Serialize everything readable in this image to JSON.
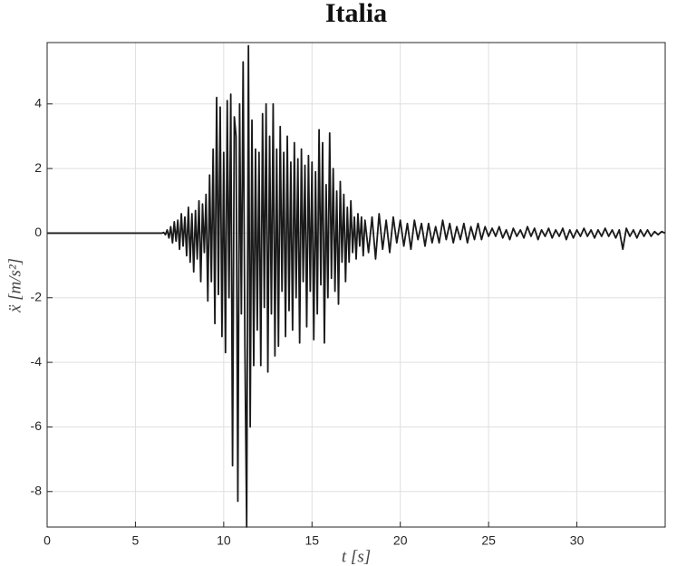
{
  "chart_data": {
    "type": "line",
    "title": "Italia",
    "x_label": "t [s]",
    "y_label": "ẍ [m/s²]",
    "xlim": [
      0,
      35
    ],
    "ylim": [
      -9.1,
      5.9
    ],
    "xticks": [
      0,
      5,
      10,
      15,
      20,
      25,
      30
    ],
    "yticks": [
      -8,
      -6,
      -4,
      -2,
      0,
      2,
      4
    ],
    "grid": true,
    "x": [
      0,
      6.5,
      6.6,
      6.7,
      6.8,
      6.9,
      7.0,
      7.1,
      7.2,
      7.3,
      7.4,
      7.5,
      7.6,
      7.7,
      7.8,
      7.9,
      8.0,
      8.1,
      8.2,
      8.3,
      8.4,
      8.5,
      8.6,
      8.7,
      8.8,
      8.9,
      9.0,
      9.1,
      9.2,
      9.3,
      9.4,
      9.5,
      9.6,
      9.7,
      9.8,
      9.9,
      10.0,
      10.1,
      10.2,
      10.3,
      10.4,
      10.5,
      10.6,
      10.7,
      10.8,
      10.9,
      11.0,
      11.1,
      11.2,
      11.3,
      11.4,
      11.5,
      11.6,
      11.7,
      11.8,
      11.9,
      12.0,
      12.1,
      12.2,
      12.3,
      12.4,
      12.5,
      12.6,
      12.7,
      12.8,
      12.9,
      13.0,
      13.1,
      13.2,
      13.3,
      13.4,
      13.5,
      13.6,
      13.7,
      13.8,
      13.9,
      14.0,
      14.1,
      14.2,
      14.3,
      14.4,
      14.5,
      14.6,
      14.7,
      14.8,
      14.9,
      15.0,
      15.1,
      15.2,
      15.3,
      15.4,
      15.5,
      15.6,
      15.7,
      15.8,
      15.9,
      16.0,
      16.1,
      16.2,
      16.3,
      16.4,
      16.5,
      16.6,
      16.7,
      16.8,
      16.9,
      17.0,
      17.1,
      17.2,
      17.3,
      17.4,
      17.5,
      17.6,
      17.7,
      17.8,
      17.9,
      18.0,
      18.2,
      18.4,
      18.6,
      18.8,
      19.0,
      19.2,
      19.4,
      19.6,
      19.8,
      20.0,
      20.2,
      20.4,
      20.6,
      20.8,
      21.0,
      21.2,
      21.4,
      21.6,
      21.8,
      22.0,
      22.2,
      22.4,
      22.6,
      22.8,
      23.0,
      23.2,
      23.4,
      23.6,
      23.8,
      24.0,
      24.2,
      24.4,
      24.6,
      24.8,
      25.0,
      25.2,
      25.4,
      25.6,
      25.8,
      26.0,
      26.2,
      26.4,
      26.6,
      26.8,
      27.0,
      27.2,
      27.4,
      27.6,
      27.8,
      28.0,
      28.2,
      28.4,
      28.6,
      28.8,
      29.0,
      29.2,
      29.4,
      29.6,
      29.8,
      30.0,
      30.2,
      30.4,
      30.6,
      30.8,
      31.0,
      31.2,
      31.4,
      31.6,
      31.8,
      32.0,
      32.2,
      32.4,
      32.6,
      32.8,
      33.0,
      33.2,
      33.4,
      33.6,
      33.8,
      34.0,
      34.2,
      34.4,
      34.6,
      34.8,
      35.0
    ],
    "series": [
      {
        "color": "#1a1a1a",
        "values": [
          0,
          0,
          0.02,
          -0.05,
          0.1,
          -0.15,
          0.2,
          -0.3,
          0.35,
          -0.25,
          0.4,
          -0.5,
          0.6,
          -0.4,
          0.5,
          -0.7,
          0.8,
          -0.9,
          0.6,
          -1.2,
          0.7,
          -0.8,
          1.0,
          -1.5,
          0.9,
          -0.6,
          1.2,
          -2.1,
          1.8,
          -1.5,
          2.6,
          -2.8,
          4.2,
          -1.9,
          3.9,
          -3.2,
          2.5,
          -3.7,
          4.1,
          -2.0,
          4.3,
          -7.2,
          3.6,
          3.0,
          -8.3,
          4.0,
          -2.5,
          5.3,
          -3.5,
          -9.1,
          5.8,
          -6.0,
          3.5,
          -4.1,
          2.6,
          -3.0,
          2.5,
          -4.1,
          3.7,
          -2.3,
          4.0,
          -4.3,
          3.0,
          -2.5,
          4.0,
          -3.8,
          2.6,
          -3.5,
          3.3,
          -1.8,
          2.5,
          -3.2,
          3.0,
          -2.4,
          2.2,
          -3.0,
          2.8,
          -2.0,
          2.3,
          -3.4,
          2.6,
          -1.5,
          2.1,
          -2.9,
          2.4,
          -1.8,
          2.2,
          -3.3,
          1.9,
          -2.5,
          3.2,
          -1.6,
          2.8,
          -3.4,
          1.5,
          -2.0,
          3.1,
          -1.4,
          2.0,
          -1.8,
          1.3,
          -2.2,
          1.6,
          -0.9,
          1.2,
          -1.5,
          0.8,
          -0.9,
          1.0,
          -0.6,
          0.5,
          -0.8,
          0.6,
          -0.4,
          0.5,
          -0.7,
          0.4,
          -0.6,
          0.5,
          -0.8,
          0.6,
          -0.5,
          0.4,
          -0.6,
          0.5,
          -0.3,
          0.4,
          -0.4,
          0.3,
          -0.5,
          0.4,
          -0.2,
          0.3,
          -0.4,
          0.3,
          -0.3,
          0.2,
          -0.3,
          0.4,
          -0.2,
          0.3,
          -0.3,
          0.2,
          -0.2,
          0.3,
          -0.3,
          0.2,
          -0.2,
          0.3,
          -0.2,
          0.2,
          -0.1,
          0.15,
          -0.1,
          0.2,
          -0.15,
          0.1,
          -0.2,
          0.15,
          -0.1,
          0.1,
          -0.15,
          0.2,
          -0.1,
          0.15,
          -0.2,
          0.1,
          -0.1,
          0.15,
          -0.15,
          0.1,
          -0.1,
          0.15,
          -0.2,
          0.1,
          -0.15,
          0.1,
          -0.1,
          0.15,
          -0.1,
          0.1,
          -0.15,
          0.1,
          -0.1,
          0.15,
          -0.1,
          0.1,
          -0.15,
          0.1,
          -0.5,
          0.15,
          -0.1,
          0.1,
          -0.15,
          0.1,
          -0.1,
          0.1,
          -0.1,
          0.05,
          -0.05,
          0.05,
          0.0
        ]
      }
    ]
  }
}
